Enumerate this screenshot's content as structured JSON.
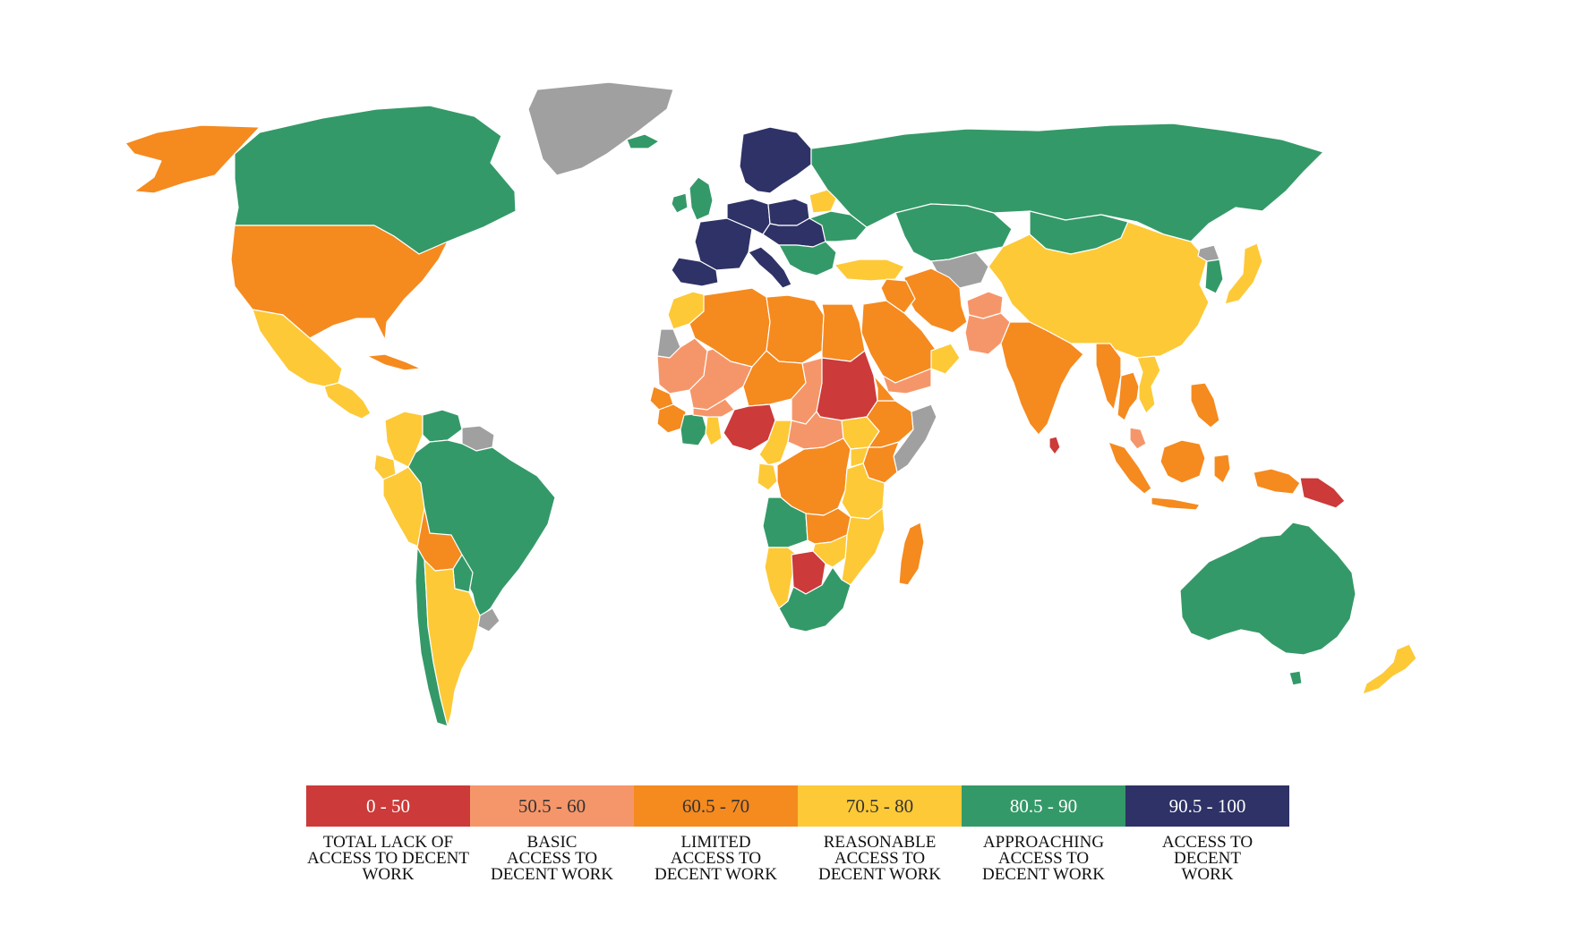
{
  "map": {
    "no_data_color": "#a0a0a0",
    "regions": [
      {
        "name": "Alaska",
        "category": 2
      },
      {
        "name": "Canada",
        "category": 4
      },
      {
        "name": "Greenland",
        "category": -1
      },
      {
        "name": "United States",
        "category": 2
      },
      {
        "name": "Mexico",
        "category": 3
      },
      {
        "name": "Central America",
        "category": 3
      },
      {
        "name": "Cuba",
        "category": 2
      },
      {
        "name": "Colombia",
        "category": 3
      },
      {
        "name": "Venezuela",
        "category": 4
      },
      {
        "name": "Guianas",
        "category": -1
      },
      {
        "name": "Ecuador",
        "category": 3
      },
      {
        "name": "Peru",
        "category": 3
      },
      {
        "name": "Brazil",
        "category": 4
      },
      {
        "name": "Bolivia",
        "category": 2
      },
      {
        "name": "Paraguay",
        "category": 4
      },
      {
        "name": "Uruguay",
        "category": -1
      },
      {
        "name": "Chile",
        "category": 4
      },
      {
        "name": "Argentina",
        "category": 3
      },
      {
        "name": "Iceland",
        "category": 4
      },
      {
        "name": "United Kingdom",
        "category": 4
      },
      {
        "name": "Ireland",
        "category": 4
      },
      {
        "name": "Scandinavia",
        "category": 5
      },
      {
        "name": "France",
        "category": 5
      },
      {
        "name": "Iberia",
        "category": 5
      },
      {
        "name": "Germany",
        "category": 5
      },
      {
        "name": "Poland",
        "category": 5
      },
      {
        "name": "Central Europe",
        "category": 5
      },
      {
        "name": "Italy",
        "category": 5
      },
      {
        "name": "Balkans",
        "category": 4
      },
      {
        "name": "Belarus",
        "category": 3
      },
      {
        "name": "Ukraine",
        "category": 4
      },
      {
        "name": "Russia",
        "category": 4
      },
      {
        "name": "Turkey",
        "category": 3
      },
      {
        "name": "Kazakhstan",
        "category": 4
      },
      {
        "name": "Central Asia",
        "category": -1
      },
      {
        "name": "Mongolia",
        "category": 4
      },
      {
        "name": "China",
        "category": 3
      },
      {
        "name": "Korea",
        "category": 4
      },
      {
        "name": "North Korea",
        "category": -1
      },
      {
        "name": "Japan",
        "category": 3
      },
      {
        "name": "Iran",
        "category": 2
      },
      {
        "name": "Afghanistan",
        "category": 1
      },
      {
        "name": "Pakistan",
        "category": 1
      },
      {
        "name": "Arabian Peninsula",
        "category": 2
      },
      {
        "name": "Oman",
        "category": 3
      },
      {
        "name": "Yemen",
        "category": 1
      },
      {
        "name": "Iraq",
        "category": 2
      },
      {
        "name": "India",
        "category": 2
      },
      {
        "name": "Sri Lanka",
        "category": 0
      },
      {
        "name": "Myanmar",
        "category": 2
      },
      {
        "name": "Thailand",
        "category": 2
      },
      {
        "name": "Vietnam",
        "category": 3
      },
      {
        "name": "Philippines",
        "category": 2
      },
      {
        "name": "Malaysia",
        "category": 1
      },
      {
        "name": "Sumatra",
        "category": 2
      },
      {
        "name": "Java",
        "category": 2
      },
      {
        "name": "Borneo",
        "category": 2
      },
      {
        "name": "Sulawesi",
        "category": 2
      },
      {
        "name": "New Guinea West",
        "category": 2
      },
      {
        "name": "Papua New Guinea",
        "category": 0
      },
      {
        "name": "Australia",
        "category": 4
      },
      {
        "name": "Tasmania",
        "category": 4
      },
      {
        "name": "New Zealand",
        "category": 3
      },
      {
        "name": "Morocco",
        "category": 3
      },
      {
        "name": "Western Sahara",
        "category": -1
      },
      {
        "name": "Algeria",
        "category": 2
      },
      {
        "name": "Libya",
        "category": 2
      },
      {
        "name": "Egypt",
        "category": 2
      },
      {
        "name": "Mauritania",
        "category": 1
      },
      {
        "name": "Mali",
        "category": 1
      },
      {
        "name": "Niger",
        "category": 2
      },
      {
        "name": "Chad",
        "category": 1
      },
      {
        "name": "Sudan",
        "category": 0
      },
      {
        "name": "Senegal",
        "category": 2
      },
      {
        "name": "Guinea",
        "category": 2
      },
      {
        "name": "Ivory Coast",
        "category": 4
      },
      {
        "name": "Ghana",
        "category": 3
      },
      {
        "name": "Burkina Faso",
        "category": 1
      },
      {
        "name": "Nigeria",
        "category": 0
      },
      {
        "name": "Cameroon",
        "category": 3
      },
      {
        "name": "Central African Republic",
        "category": 1
      },
      {
        "name": "South Sudan",
        "category": 3
      },
      {
        "name": "Ethiopia",
        "category": 2
      },
      {
        "name": "Eritrea",
        "category": 2
      },
      {
        "name": "Somalia",
        "category": -1
      },
      {
        "name": "Gabon",
        "category": 3
      },
      {
        "name": "Congo DRC",
        "category": 2
      },
      {
        "name": "Kenya",
        "category": 2
      },
      {
        "name": "Uganda",
        "category": 3
      },
      {
        "name": "Tanzania",
        "category": 3
      },
      {
        "name": "Angola",
        "category": 4
      },
      {
        "name": "Zambia",
        "category": 2
      },
      {
        "name": "Mozambique",
        "category": 3
      },
      {
        "name": "Namibia",
        "category": 3
      },
      {
        "name": "Botswana",
        "category": 0
      },
      {
        "name": "Zimbabwe",
        "category": 3
      },
      {
        "name": "South Africa",
        "category": 4
      },
      {
        "name": "Madagascar",
        "category": 2
      }
    ]
  },
  "legend": [
    {
      "range": "0 - 50",
      "label": "TOTAL LACK OF\nACCESS TO DECENT\nWORK",
      "color": "#cc3a3a",
      "text_color": "#ffffff"
    },
    {
      "range": "50.5 - 60",
      "label": "BASIC\nACCESS TO\nDECENT WORK",
      "color": "#f5966a",
      "text_color": "#333333"
    },
    {
      "range": "60.5 - 70",
      "label": "LIMITED\nACCESS TO\nDECENT WORK",
      "color": "#f58a1f",
      "text_color": "#333333"
    },
    {
      "range": "70.5 - 80",
      "label": "REASONABLE\nACCESS TO\nDECENT WORK",
      "color": "#fdc937",
      "text_color": "#333333"
    },
    {
      "range": "80.5 - 90",
      "label": "APPROACHING\nACCESS TO\nDECENT WORK",
      "color": "#349968",
      "text_color": "#ffffff"
    },
    {
      "range": "90.5 - 100",
      "label": "ACCESS TO\nDECENT\nWORK",
      "color": "#2e3266",
      "text_color": "#ffffff"
    }
  ]
}
